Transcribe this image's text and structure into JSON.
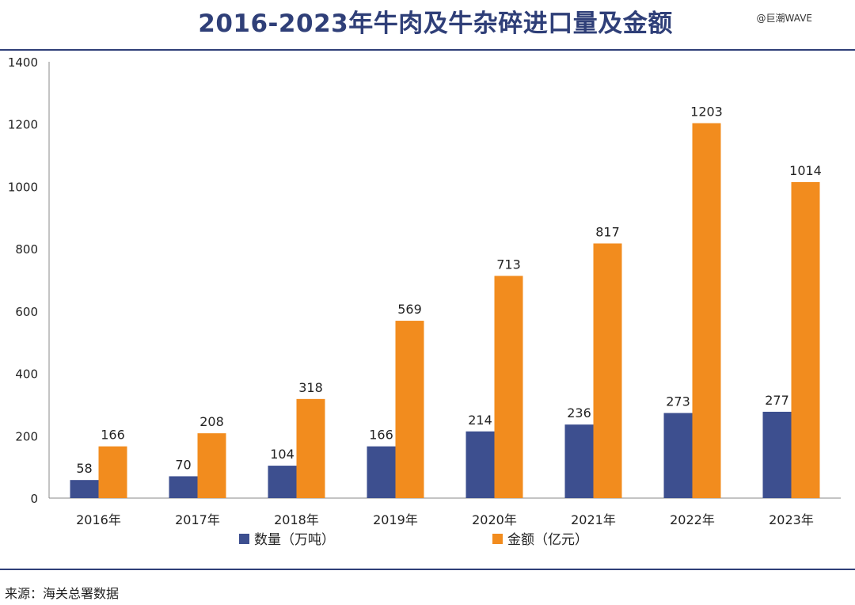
{
  "chart_data": {
    "type": "bar",
    "title": "2016-2023年牛肉及牛杂碎进口量及金额",
    "categories": [
      "2016年",
      "2017年",
      "2018年",
      "2019年",
      "2020年",
      "2021年",
      "2022年",
      "2023年"
    ],
    "series": [
      {
        "name": "数量（万吨）",
        "values": [
          58,
          70,
          104,
          166,
          214,
          236,
          273,
          277
        ],
        "color": "#3d4f8f"
      },
      {
        "name": "金额（亿元）",
        "values": [
          166,
          208,
          318,
          569,
          713,
          817,
          1203,
          1014
        ],
        "color": "#f28c1e"
      }
    ],
    "ylim": [
      0,
      1400
    ],
    "yticks": [
      0,
      200,
      400,
      600,
      800,
      1000,
      1200,
      1400
    ],
    "grid": false,
    "legend_position": "bottom"
  },
  "watermark": "@巨潮WAVE",
  "source": "来源：海关总署数据"
}
